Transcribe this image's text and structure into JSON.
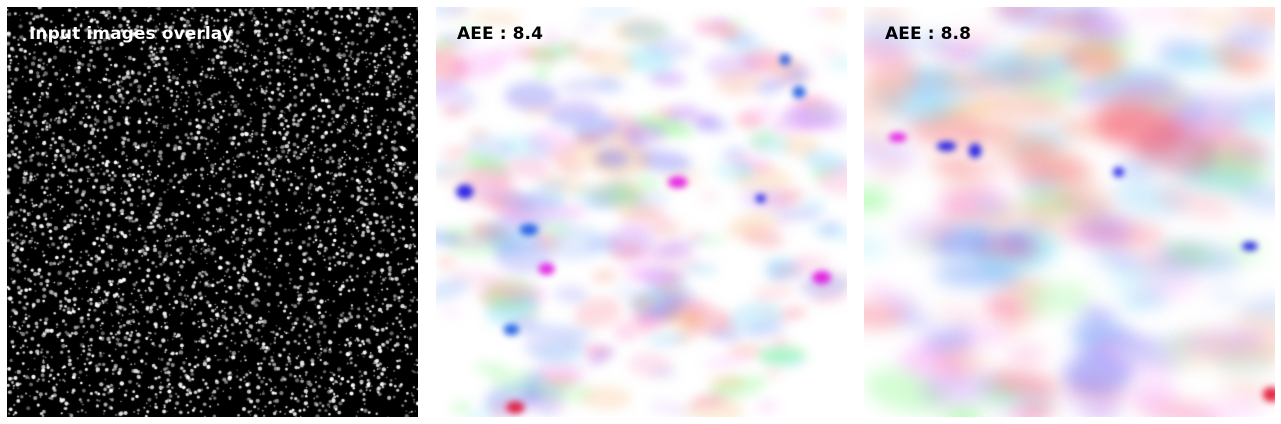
{
  "panels": [
    {
      "label": "Input images overlay",
      "content": "particle-image"
    },
    {
      "label": "AEE : 8.4",
      "content": "flow-field-color-map"
    },
    {
      "label": "AEE : 8.8",
      "content": "flow-field-color-map"
    }
  ]
}
